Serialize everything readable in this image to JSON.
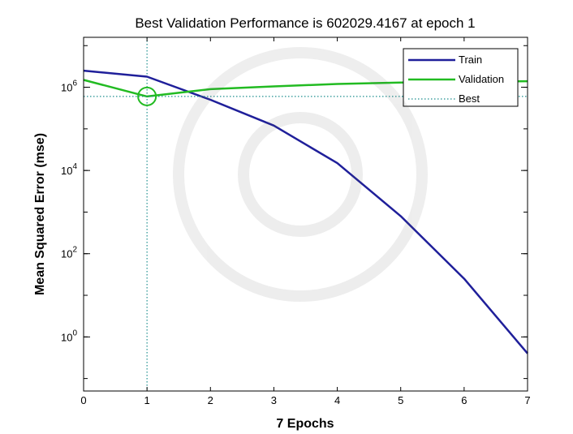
{
  "chart_data": {
    "type": "line",
    "title": "Best Validation Performance is 602029.4167 at epoch 1",
    "xlabel": "7 Epochs",
    "ylabel": "Mean Squared Error  (mse)",
    "x_scale": "linear",
    "y_scale": "log",
    "xlim": [
      0,
      7
    ],
    "ylim_log10": [
      -1.3,
      7.2
    ],
    "x_ticks": [
      0,
      1,
      2,
      3,
      4,
      5,
      6,
      7
    ],
    "x_tick_labels": [
      "0",
      "1",
      "2",
      "3",
      "4",
      "5",
      "6",
      "7"
    ],
    "y_ticks_log10": [
      0,
      2,
      4,
      6
    ],
    "y_tick_labels": [
      {
        "base": "10",
        "exp": "0"
      },
      {
        "base": "10",
        "exp": "2"
      },
      {
        "base": "10",
        "exp": "4"
      },
      {
        "base": "10",
        "exp": "6"
      }
    ],
    "series": [
      {
        "name": "Train",
        "color": "#1f1f9a",
        "x": [
          0,
          1,
          2,
          3,
          4,
          5,
          6,
          7
        ],
        "y": [
          2500000,
          1800000,
          500000,
          120000,
          15000,
          800,
          25,
          0.4
        ]
      },
      {
        "name": "Validation",
        "color": "#22bb22",
        "x": [
          0,
          1,
          2,
          3,
          4,
          5,
          6,
          7
        ],
        "y": [
          1500000,
          602029.4167,
          900000,
          1050000,
          1200000,
          1300000,
          1350000,
          1400000
        ]
      },
      {
        "name": "Best",
        "color": "#1f8f8f",
        "style": "dotted",
        "y_constant": 602029.4167
      }
    ],
    "best_epoch": 1,
    "best_value": 602029.4167,
    "legend_position": "top-right",
    "grid": false
  }
}
